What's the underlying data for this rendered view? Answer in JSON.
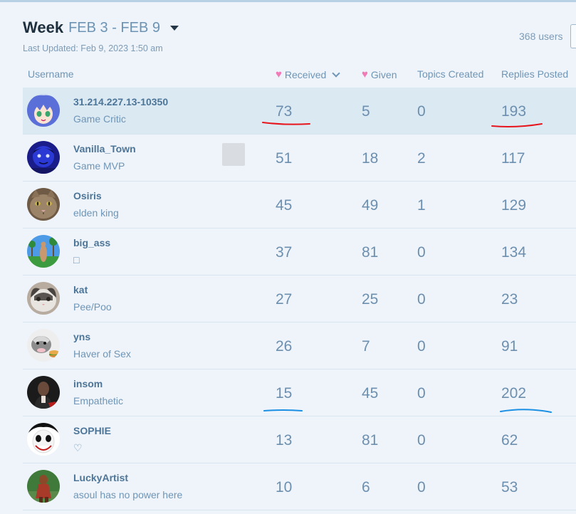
{
  "header": {
    "period_label": "Week",
    "period_range": "FEB 3 - FEB 9",
    "last_updated": "Last Updated: Feb 9, 2023 1:50 am",
    "user_count": "368 users"
  },
  "columns": {
    "username": "Username",
    "received": "Received",
    "given": "Given",
    "topics": "Topics Created",
    "replies": "Replies Posted"
  },
  "rows": [
    {
      "name": "31.214.227.13-10350",
      "title": "Game Critic",
      "received": "73",
      "given": "5",
      "topics": "0",
      "replies": "193",
      "avatar": "anime-girl-avatar",
      "highlight": true
    },
    {
      "name": "Vanilla_Town",
      "title": "Game MVP",
      "received": "51",
      "given": "18",
      "topics": "2",
      "replies": "117",
      "avatar": "blue-face-avatar"
    },
    {
      "name": "Osiris",
      "title": "elden king",
      "received": "45",
      "given": "49",
      "topics": "1",
      "replies": "129",
      "avatar": "cat-avatar"
    },
    {
      "name": "big_ass",
      "title": "□",
      "received": "37",
      "given": "81",
      "topics": "0",
      "replies": "134",
      "avatar": "beach-avatar"
    },
    {
      "name": "kat",
      "title": "Pee/Poo",
      "received": "27",
      "given": "25",
      "topics": "0",
      "replies": "23",
      "avatar": "cat-photo-avatar"
    },
    {
      "name": "yns",
      "title": "Haver of Sex",
      "received": "26",
      "given": "7",
      "topics": "0",
      "replies": "91",
      "avatar": "possum-avatar"
    },
    {
      "name": "insom",
      "title": "Empathetic",
      "received": "15",
      "given": "45",
      "topics": "0",
      "replies": "202",
      "avatar": "dark-figure-avatar"
    },
    {
      "name": "SOPHIE",
      "title": "♡",
      "received": "13",
      "given": "81",
      "topics": "0",
      "replies": "62",
      "avatar": "white-face-avatar"
    },
    {
      "name": "LuckyArtist",
      "title": "asoul has no power here",
      "received": "10",
      "given": "6",
      "topics": "0",
      "replies": "53",
      "avatar": "figure-avatar"
    }
  ],
  "colors": {
    "red_annotation": "#e8141c",
    "blue_annotation": "#1a8fe3",
    "heart": "#f27ab7"
  }
}
